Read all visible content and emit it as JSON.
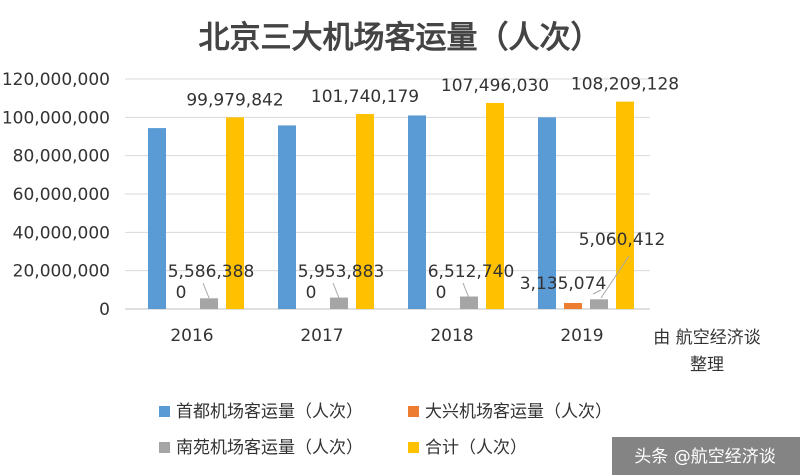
{
  "chart_data": {
    "type": "bar",
    "title": "北京三大机场客运量（人次）",
    "categories": [
      "2016",
      "2017",
      "2018",
      "2019"
    ],
    "ylim": [
      0,
      120000000
    ],
    "yticks": [
      0,
      20000000,
      40000000,
      60000000,
      80000000,
      100000000,
      120000000
    ],
    "ytick_labels": [
      "0",
      "20,000,000",
      "40,000,000",
      "60,000,000",
      "80,000,000",
      "100,000,000",
      "120,000,000"
    ],
    "grid": true,
    "legend_position": "bottom",
    "series": [
      {
        "name": "首都机场客运量（人次）",
        "color": "#5B9BD5",
        "values": [
          94390000,
          95790000,
          100980000,
          100010000
        ],
        "labels": [
          "",
          "",
          "",
          ""
        ]
      },
      {
        "name": "大兴机场客运量（人次）",
        "color": "#ED7D31",
        "values": [
          0,
          0,
          0,
          3135074
        ],
        "labels": [
          "0",
          "0",
          "0",
          "3,135,074"
        ]
      },
      {
        "name": "南苑机场客运量（人次）",
        "color": "#A5A5A5",
        "values": [
          5586388,
          5953883,
          6512740,
          5060412
        ],
        "labels": [
          "5,586,388",
          "5,953,883",
          "6,512,740",
          "5,060,412"
        ]
      },
      {
        "name": "合计（人次）",
        "color": "#FFC000",
        "values": [
          99979842,
          101740179,
          107496030,
          108209128
        ],
        "labels": [
          "99,979,842",
          "101,740,179",
          "107,496,030",
          "108,209,128"
        ]
      }
    ],
    "annotation": [
      "由 航空经济谈",
      "整理"
    ]
  },
  "watermark": "头条 @航空经济谈"
}
